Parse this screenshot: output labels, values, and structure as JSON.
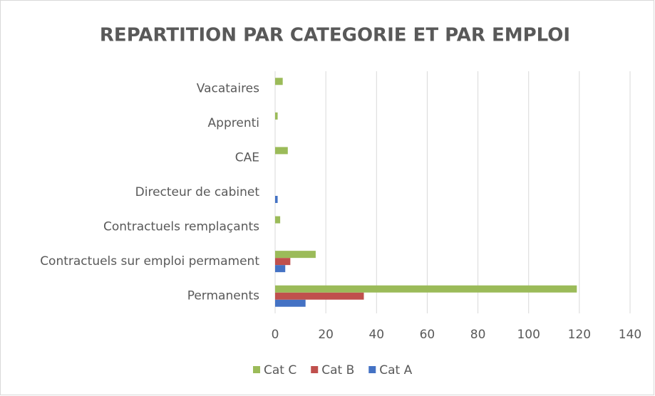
{
  "chart_data": {
    "type": "hbar",
    "title": "REPARTITION PAR CATEGORIE ET PAR EMPLOI",
    "categories": [
      "Permanents",
      "Contractuels sur emploi permament",
      "Contractuels remplaçants",
      "Directeur de cabinet",
      "CAE",
      "Apprenti",
      "Vacataires"
    ],
    "series": [
      {
        "name": "Cat A",
        "color": "#4472c4",
        "values": [
          12,
          4,
          0,
          1,
          0,
          0,
          0
        ]
      },
      {
        "name": "Cat B",
        "color": "#c0504d",
        "values": [
          35,
          6,
          0,
          0,
          0,
          0,
          0
        ]
      },
      {
        "name": "Cat C",
        "color": "#9bbb59",
        "values": [
          119,
          16,
          2,
          0,
          5,
          1,
          3
        ]
      }
    ],
    "xlim": [
      0,
      140
    ],
    "xticks": [
      0,
      20,
      40,
      60,
      80,
      100,
      120,
      140
    ],
    "grid": true,
    "legend": "bottom"
  }
}
